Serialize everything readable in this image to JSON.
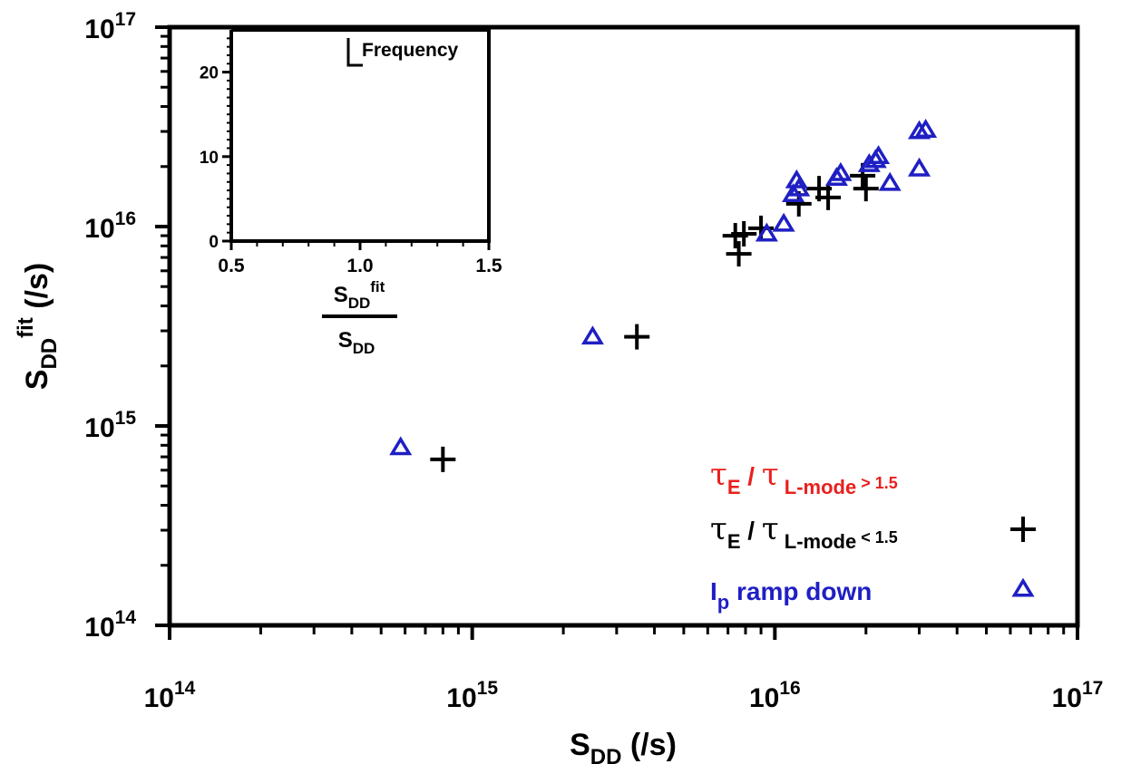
{
  "chart_data": [
    {
      "type": "scatter",
      "xscale": "log",
      "yscale": "log",
      "xlim": [
        100000000000000.0,
        1e+17
      ],
      "ylim": [
        100000000000000.0,
        1e+17
      ],
      "xlabel": {
        "main": "S",
        "sub": "DD",
        "rest": " (/s)"
      },
      "ylabel": {
        "main": "S",
        "sub": "DD",
        "sup": "fit",
        "rest": " (/s)"
      },
      "x_ticks": [
        {
          "value": 100000000000000.0,
          "base": "10",
          "exp": "14"
        },
        {
          "value": 1000000000000000.0,
          "base": "10",
          "exp": "15"
        },
        {
          "value": 1e+16,
          "base": "10",
          "exp": "16"
        },
        {
          "value": 1e+17,
          "base": "10",
          "exp": "17"
        }
      ],
      "y_ticks": [
        {
          "value": 100000000000000.0,
          "base": "10",
          "exp": "14"
        },
        {
          "value": 1000000000000000.0,
          "base": "10",
          "exp": "15"
        },
        {
          "value": 1e+16,
          "base": "10",
          "exp": "16"
        },
        {
          "value": 1e+17,
          "base": "10",
          "exp": "17"
        }
      ],
      "legend_position": "bottom-right",
      "series": [
        {
          "key": "high",
          "legend": {
            "tau": "τ",
            "sub": "E",
            "mid": " / τ ",
            "sub2": "L-mode",
            "rest": " > 1.5"
          },
          "color": "#e8201e",
          "marker": "none",
          "x": [],
          "y": []
        },
        {
          "key": "low",
          "legend": {
            "tau": "τ",
            "sub": "E",
            "mid": " / τ ",
            "sub2": "L-mode",
            "rest": " < 1.5"
          },
          "color": "#000000",
          "marker": "plus",
          "x": [
            800000000000000.0,
            3500000000000000.0,
            7400000000000000.0,
            7600000000000000.0,
            7900000000000000.0,
            9000000000000000.0,
            1.2e+16,
            1.4e+16,
            1.5e+16,
            1.95e+16,
            2e+16
          ],
          "y": [
            680000000000000.0,
            2800000000000000.0,
            9000000000000000.0,
            7300000000000000.0,
            9200000000000000.0,
            9800000000000000.0,
            1.3e+16,
            1.55e+16,
            1.4e+16,
            1.8e+16,
            1.55e+16
          ]
        },
        {
          "key": "ramp",
          "legend": {
            "tau": "I",
            "sub": "p",
            "mid": " ramp down",
            "sub2": "",
            "rest": ""
          },
          "color": "#1f1fc4",
          "marker": "triangle",
          "x": [
            580000000000000.0,
            2500000000000000.0,
            9400000000000000.0,
            1.07e+16,
            1.15e+16,
            1.18e+16,
            1.2e+16,
            1.6e+16,
            1.65e+16,
            2.05e+16,
            2.15e+16,
            2.2e+16,
            2.4e+16,
            3e+16,
            3e+16,
            3.15e+16
          ],
          "y": [
            780000000000000.0,
            2800000000000000.0,
            9200000000000000.0,
            1.03e+16,
            1.45e+16,
            1.7e+16,
            1.55e+16,
            1.75e+16,
            1.85e+16,
            2.05e+16,
            2.15e+16,
            2.25e+16,
            1.65e+16,
            3e+16,
            1.95e+16,
            3.05e+16
          ]
        }
      ]
    },
    {
      "type": "bar",
      "role": "inset-histogram",
      "title": "Frequency",
      "xlabel": {
        "num_main": "S",
        "num_sub": "DD",
        "num_sup": "fit",
        "den_main": "S",
        "den_sub": "DD"
      },
      "xlim": [
        0.5,
        1.5
      ],
      "ylim": [
        0,
        25
      ],
      "x_ticks": [
        "0.5",
        "1.0",
        "1.5"
      ],
      "y_ticks": [
        "0",
        "10",
        "20"
      ],
      "values": []
    }
  ]
}
